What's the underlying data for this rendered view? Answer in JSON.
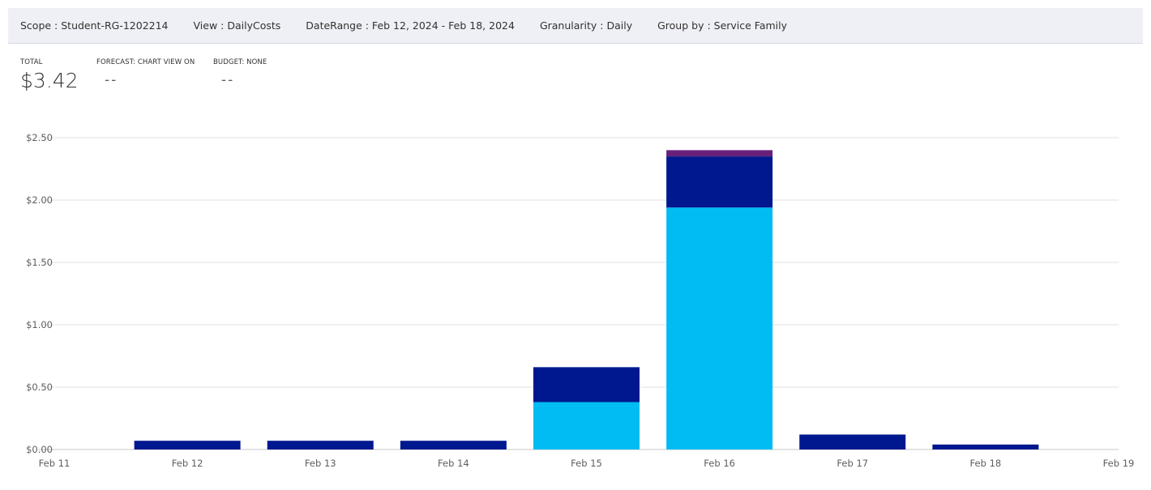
{
  "filters": {
    "scope": "Scope : Student-RG-1202214",
    "view": "View : DailyCosts",
    "date_range": "DateRange : Feb 12, 2024 - Feb 18, 2024",
    "granularity": "Granularity : Daily",
    "group_by": "Group by : Service Family"
  },
  "kpis": {
    "total_label": "TOTAL",
    "total_value": "$3.42",
    "forecast_label": "FORECAST: CHART VIEW ON",
    "forecast_value": "--",
    "budget_label": "BUDGET: NONE",
    "budget_value": "--"
  },
  "chart_data": {
    "type": "bar",
    "stacked": true,
    "x_ticks": [
      "Feb 11",
      "Feb 12",
      "Feb 13",
      "Feb 14",
      "Feb 15",
      "Feb 16",
      "Feb 17",
      "Feb 18",
      "Feb 19"
    ],
    "categories": [
      "Feb 12",
      "Feb 13",
      "Feb 14",
      "Feb 15",
      "Feb 16",
      "Feb 17",
      "Feb 18"
    ],
    "y_ticks": [
      "$0.00",
      "$0.50",
      "$1.00",
      "$1.50",
      "$2.00",
      "$2.50"
    ],
    "ylim": [
      0,
      2.5
    ],
    "grid": true,
    "series": [
      {
        "color": "#00bcf2",
        "values": [
          0,
          0,
          0,
          0.38,
          1.94,
          0,
          0
        ]
      },
      {
        "color": "#00188f",
        "values": [
          0.07,
          0.07,
          0.07,
          0.28,
          0.41,
          0.12,
          0.04
        ]
      },
      {
        "color": "#68217a",
        "values": [
          0,
          0,
          0,
          0,
          0.05,
          0,
          0
        ]
      }
    ]
  }
}
